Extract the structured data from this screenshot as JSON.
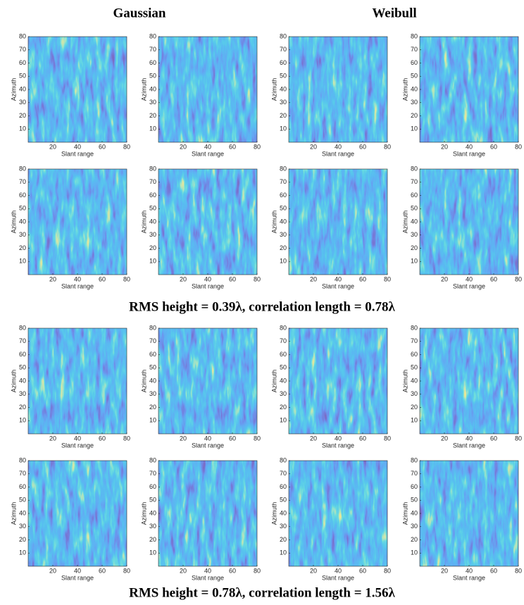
{
  "headers": [
    "Gaussian",
    "Weibull"
  ],
  "captions": [
    "RMS height = 0.39λ, correlation length = 0.78λ",
    "RMS height = 0.78λ, correlation length = 1.56λ"
  ],
  "chart_data": [
    {
      "type": "heatmap",
      "xlabel": "Slant range",
      "ylabel": "Azimuth",
      "xlim": [
        0,
        80
      ],
      "ylim": [
        0,
        80
      ],
      "xticks": [
        20,
        40,
        60,
        80
      ],
      "yticks": [
        10,
        20,
        30,
        40,
        50,
        60,
        70,
        80
      ]
    },
    {
      "type": "heatmap",
      "xlabel": "Slant range",
      "ylabel": "Azimuth",
      "xlim": [
        0,
        80
      ],
      "ylim": [
        0,
        80
      ],
      "xticks": [
        20,
        40,
        60,
        80
      ],
      "yticks": [
        10,
        20,
        30,
        40,
        50,
        60,
        70,
        80
      ]
    },
    {
      "type": "heatmap",
      "xlabel": "Slant range",
      "ylabel": "Azimuth",
      "xlim": [
        0,
        80
      ],
      "ylim": [
        0,
        80
      ],
      "xticks": [
        20,
        40,
        60,
        80
      ],
      "yticks": [
        10,
        20,
        30,
        40,
        50,
        60,
        70,
        80
      ]
    },
    {
      "type": "heatmap",
      "xlabel": "Slant range",
      "ylabel": "Azimuth",
      "xlim": [
        0,
        80
      ],
      "ylim": [
        0,
        80
      ],
      "xticks": [
        20,
        40,
        60,
        80
      ],
      "yticks": [
        10,
        20,
        30,
        40,
        50,
        60,
        70,
        80
      ]
    },
    {
      "type": "heatmap",
      "xlabel": "Slant range",
      "ylabel": "Azimuth",
      "xlim": [
        0,
        80
      ],
      "ylim": [
        0,
        80
      ],
      "xticks": [
        20,
        40,
        60,
        80
      ],
      "yticks": [
        10,
        20,
        30,
        40,
        50,
        60,
        70,
        80
      ]
    },
    {
      "type": "heatmap",
      "xlabel": "Slant range",
      "ylabel": "Azimuth",
      "xlim": [
        0,
        80
      ],
      "ylim": [
        0,
        80
      ],
      "xticks": [
        20,
        40,
        60,
        80
      ],
      "yticks": [
        10,
        20,
        30,
        40,
        50,
        60,
        70,
        80
      ]
    },
    {
      "type": "heatmap",
      "xlabel": "Slant range",
      "ylabel": "Azimuth",
      "xlim": [
        0,
        80
      ],
      "ylim": [
        0,
        80
      ],
      "xticks": [
        20,
        40,
        60,
        80
      ],
      "yticks": [
        10,
        20,
        30,
        40,
        50,
        60,
        70,
        80
      ]
    },
    {
      "type": "heatmap",
      "xlabel": "Slant range",
      "ylabel": "Azimuth",
      "xlim": [
        0,
        80
      ],
      "ylim": [
        0,
        80
      ],
      "xticks": [
        20,
        40,
        60,
        80
      ],
      "yticks": [
        10,
        20,
        30,
        40,
        50,
        60,
        70,
        80
      ]
    },
    {
      "type": "heatmap",
      "xlabel": "Slant range",
      "ylabel": "Azimuth",
      "xlim": [
        0,
        80
      ],
      "ylim": [
        0,
        80
      ],
      "xticks": [
        20,
        40,
        60,
        80
      ],
      "yticks": [
        10,
        20,
        30,
        40,
        50,
        60,
        70,
        80
      ]
    },
    {
      "type": "heatmap",
      "xlabel": "Slant range",
      "ylabel": "Azimuth",
      "xlim": [
        0,
        80
      ],
      "ylim": [
        0,
        80
      ],
      "xticks": [
        20,
        40,
        60,
        80
      ],
      "yticks": [
        10,
        20,
        30,
        40,
        50,
        60,
        70,
        80
      ]
    },
    {
      "type": "heatmap",
      "xlabel": "Slant range",
      "ylabel": "Azimuth",
      "xlim": [
        0,
        80
      ],
      "ylim": [
        0,
        80
      ],
      "xticks": [
        20,
        40,
        60,
        80
      ],
      "yticks": [
        10,
        20,
        30,
        40,
        50,
        60,
        70,
        80
      ]
    },
    {
      "type": "heatmap",
      "xlabel": "Slant range",
      "ylabel": "Azimuth",
      "xlim": [
        0,
        80
      ],
      "ylim": [
        0,
        80
      ],
      "xticks": [
        20,
        40,
        60,
        80
      ],
      "yticks": [
        10,
        20,
        30,
        40,
        50,
        60,
        70,
        80
      ]
    },
    {
      "type": "heatmap",
      "xlabel": "Slant range",
      "ylabel": "Azimuth",
      "xlim": [
        0,
        80
      ],
      "ylim": [
        0,
        80
      ],
      "xticks": [
        20,
        40,
        60,
        80
      ],
      "yticks": [
        10,
        20,
        30,
        40,
        50,
        60,
        70,
        80
      ]
    },
    {
      "type": "heatmap",
      "xlabel": "Slant range",
      "ylabel": "Azimuth",
      "xlim": [
        0,
        80
      ],
      "ylim": [
        0,
        80
      ],
      "xticks": [
        20,
        40,
        60,
        80
      ],
      "yticks": [
        10,
        20,
        30,
        40,
        50,
        60,
        70,
        80
      ]
    },
    {
      "type": "heatmap",
      "xlabel": "Slant range",
      "ylabel": "Azimuth",
      "xlim": [
        0,
        80
      ],
      "ylim": [
        0,
        80
      ],
      "xticks": [
        20,
        40,
        60,
        80
      ],
      "yticks": [
        10,
        20,
        30,
        40,
        50,
        60,
        70,
        80
      ]
    },
    {
      "type": "heatmap",
      "xlabel": "Slant range",
      "ylabel": "Azimuth",
      "xlim": [
        0,
        80
      ],
      "ylim": [
        0,
        80
      ],
      "xticks": [
        20,
        40,
        60,
        80
      ],
      "yticks": [
        10,
        20,
        30,
        40,
        50,
        60,
        70,
        80
      ]
    }
  ]
}
